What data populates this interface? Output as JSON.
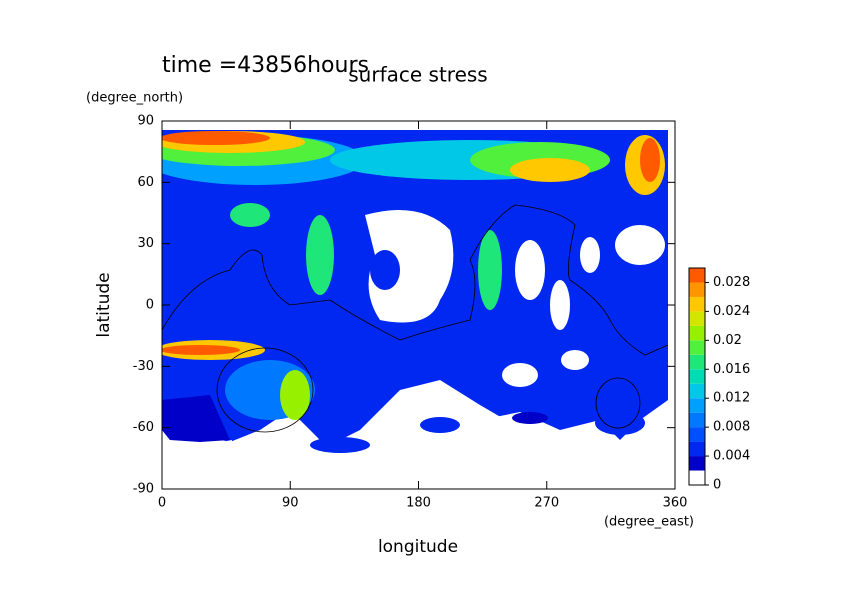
{
  "chart_data": {
    "type": "contour",
    "title": "surface stress",
    "subtitle": "time =43856hours",
    "x_label": "longitude",
    "x_unit": "(degree_east)",
    "y_label": "latitude",
    "y_unit": "(degree_north)",
    "xlim": [
      0,
      360
    ],
    "xticks": [
      0,
      90,
      180,
      270,
      360
    ],
    "ylim": [
      -90,
      90
    ],
    "yticks": [
      -90,
      -60,
      -30,
      0,
      30,
      60,
      90
    ],
    "colorbar": {
      "lim": [
        0,
        0.03
      ],
      "ticks": [
        0,
        0.004,
        0.008,
        0.012,
        0.016,
        0.02,
        0.024,
        0.028
      ],
      "levels": [
        0,
        0.002,
        0.004,
        0.006,
        0.008,
        0.01,
        0.012,
        0.014,
        0.016,
        0.018,
        0.02,
        0.022,
        0.024,
        0.026,
        0.028,
        0.03
      ],
      "colors": [
        "#ffffff",
        "#0000c8",
        "#0028f0",
        "#0050ff",
        "#0078ff",
        "#00a0ff",
        "#00c8e6",
        "#00dcb4",
        "#1ee678",
        "#50f03c",
        "#96f000",
        "#d2e600",
        "#ffc800",
        "#ff9600",
        "#ff5a00"
      ]
    }
  }
}
